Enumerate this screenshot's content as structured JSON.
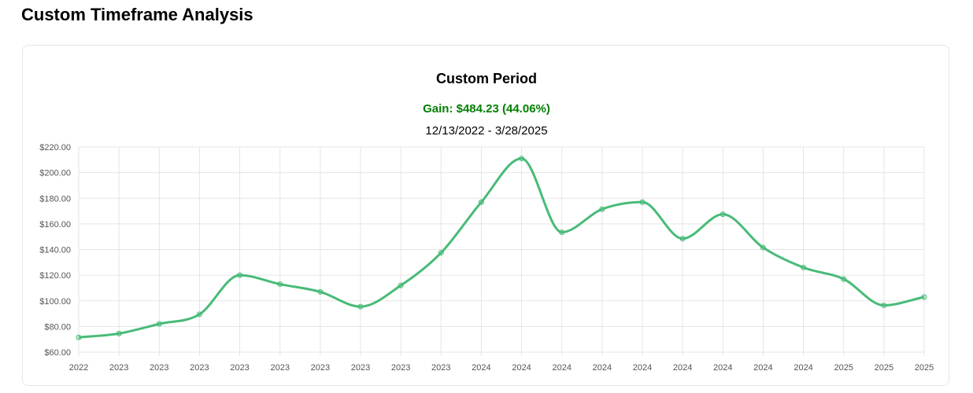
{
  "page": {
    "title": "Custom Timeframe Analysis"
  },
  "header": {
    "title": "Custom Period",
    "gain": "Gain: $484.23 (44.06%)",
    "date_range": "12/13/2022 - 3/28/2025"
  },
  "colors": {
    "line": "#48bb78",
    "gain": "#008000",
    "grid": "#e5e5e5"
  },
  "chart_data": {
    "type": "line",
    "title": "Custom Period",
    "subtitle": "Gain: $484.23 (44.06%)",
    "xlabel": "",
    "ylabel": "",
    "x": [
      "2022",
      "2023",
      "2023",
      "2023",
      "2023",
      "2023",
      "2023",
      "2023",
      "2023",
      "2023",
      "2024",
      "2024",
      "2024",
      "2024",
      "2024",
      "2024",
      "2024",
      "2024",
      "2024",
      "2025",
      "2025",
      "2025"
    ],
    "series": [
      {
        "values": [
          71.5,
          74.5,
          82,
          89.5,
          120,
          113,
          107,
          95.5,
          112,
          137.5,
          177,
          211,
          153.5,
          171.5,
          177,
          148.5,
          167.5,
          141.5,
          126,
          117,
          96.5,
          103
        ]
      }
    ],
    "ylim": [
      60,
      220
    ],
    "y_ticks": [
      60,
      80,
      100,
      120,
      140,
      160,
      180,
      200,
      220
    ],
    "y_tick_labels": [
      "$60.00",
      "$80.00",
      "$100.00",
      "$120.00",
      "$140.00",
      "$160.00",
      "$180.00",
      "$200.00",
      "$220.00"
    ],
    "grid": true,
    "legend": "none"
  }
}
